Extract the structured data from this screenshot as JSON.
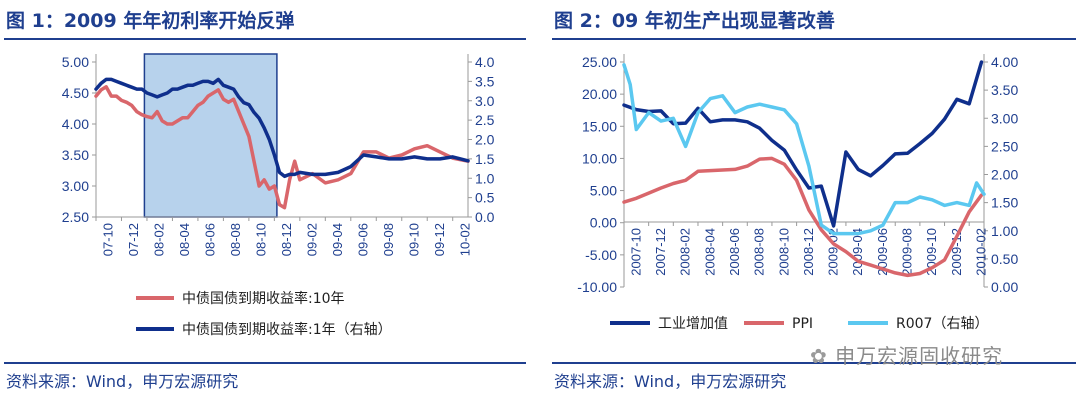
{
  "watermark": "申万宏源固收研究",
  "chart_data": [
    {
      "type": "line",
      "title": "图 1：2009 年年初利率开始反弹",
      "source": "资料来源：Wind，申万宏源研究",
      "ylim": [
        2.5,
        5.0
      ],
      "y_ticks": [
        "5.00",
        "4.50",
        "4.00",
        "3.50",
        "3.00",
        "2.50"
      ],
      "y2lim": [
        0.0,
        4.0
      ],
      "y2_ticks": [
        "4.0",
        "3.5",
        "3.0",
        "2.5",
        "2.0",
        "1.5",
        "1.0",
        "0.5",
        "0.0"
      ],
      "categories": [
        "07-10",
        "07-12",
        "08-02",
        "08-04",
        "08-06",
        "08-08",
        "08-10",
        "08-12",
        "09-02",
        "09-04",
        "09-06",
        "09-08",
        "09-10",
        "09-12",
        "10-02"
      ],
      "x_range": [
        0,
        14.6
      ],
      "highlight_region": [
        1.9,
        7.1
      ],
      "grid": false,
      "legend_position": "bottom",
      "colors": {
        "ten_year": "#d9666b",
        "one_year": "#0f2f8c",
        "highlight": "#9fc3e6",
        "highlight_border": "#1f3f8f"
      },
      "series": [
        {
          "name": "中债国债到期收益率:10年",
          "axis": "left",
          "x": [
            0,
            0.2,
            0.4,
            0.6,
            0.8,
            1.0,
            1.2,
            1.4,
            1.6,
            1.8,
            2.0,
            2.2,
            2.4,
            2.6,
            2.8,
            3.0,
            3.2,
            3.4,
            3.6,
            3.8,
            4.0,
            4.2,
            4.4,
            4.6,
            4.8,
            5.0,
            5.2,
            5.4,
            5.6,
            5.8,
            6.0,
            6.2,
            6.4,
            6.6,
            6.8,
            7.0,
            7.2,
            7.4,
            7.6,
            7.8,
            8.0,
            8.5,
            9.0,
            9.5,
            10.0,
            10.5,
            11.0,
            11.5,
            12.0,
            12.5,
            13.0,
            13.5,
            14.0,
            14.6
          ],
          "values": [
            4.45,
            4.55,
            4.6,
            4.45,
            4.45,
            4.38,
            4.35,
            4.3,
            4.2,
            4.15,
            4.12,
            4.1,
            4.2,
            4.05,
            4.0,
            4.0,
            4.05,
            4.1,
            4.1,
            4.2,
            4.3,
            4.35,
            4.45,
            4.5,
            4.55,
            4.4,
            4.35,
            4.4,
            4.2,
            4.0,
            3.8,
            3.4,
            3.0,
            3.1,
            2.95,
            3.0,
            2.7,
            2.65,
            3.1,
            3.4,
            3.1,
            3.2,
            3.05,
            3.1,
            3.2,
            3.55,
            3.55,
            3.45,
            3.5,
            3.6,
            3.65,
            3.55,
            3.45,
            3.4
          ]
        },
        {
          "name": "中债国债到期收益率:1年（右轴）",
          "axis": "right",
          "x": [
            0,
            0.2,
            0.4,
            0.6,
            0.8,
            1.0,
            1.2,
            1.4,
            1.6,
            1.8,
            2.0,
            2.2,
            2.4,
            2.6,
            2.8,
            3.0,
            3.2,
            3.4,
            3.6,
            3.8,
            4.0,
            4.2,
            4.4,
            4.6,
            4.8,
            5.0,
            5.2,
            5.4,
            5.6,
            5.8,
            6.0,
            6.2,
            6.4,
            6.6,
            6.8,
            7.0,
            7.2,
            7.4,
            7.6,
            7.8,
            8.0,
            8.5,
            9.0,
            9.5,
            10.0,
            10.5,
            11.0,
            11.5,
            12.0,
            12.5,
            13.0,
            13.5,
            14.0,
            14.6
          ],
          "values": [
            3.3,
            3.45,
            3.55,
            3.55,
            3.5,
            3.45,
            3.4,
            3.35,
            3.3,
            3.3,
            3.2,
            3.15,
            3.1,
            3.15,
            3.2,
            3.3,
            3.3,
            3.35,
            3.4,
            3.4,
            3.45,
            3.5,
            3.5,
            3.45,
            3.55,
            3.4,
            3.35,
            3.3,
            3.1,
            2.95,
            2.9,
            2.7,
            2.55,
            2.3,
            2.0,
            1.6,
            1.15,
            1.05,
            1.1,
            1.1,
            1.15,
            1.1,
            1.1,
            1.15,
            1.3,
            1.6,
            1.55,
            1.5,
            1.5,
            1.55,
            1.5,
            1.5,
            1.55,
            1.45
          ]
        }
      ]
    },
    {
      "type": "line",
      "title": "图 2：09 年初生产出现显著改善",
      "source": "资料来源：Wind，申万宏源研究",
      "ylim": [
        -10,
        25
      ],
      "y_ticks": [
        "25.00",
        "20.00",
        "15.00",
        "10.00",
        "5.00",
        "0.00",
        "-5.00",
        "-10.00"
      ],
      "y2lim": [
        0,
        4
      ],
      "y2_ticks": [
        "4.00",
        "3.50",
        "3.00",
        "2.50",
        "2.00",
        "1.50",
        "1.00",
        "0.50",
        "0.00"
      ],
      "categories": [
        "2007-10",
        "2007-12",
        "2008-02",
        "2008-04",
        "2008-06",
        "2008-08",
        "2008-10",
        "2008-12",
        "2009-02",
        "2009-04",
        "2009-06",
        "2009-08",
        "2009-10",
        "2009-12",
        "2010-02"
      ],
      "x_range": [
        0,
        14.6
      ],
      "grid": false,
      "legend_position": "bottom",
      "colors": {
        "industrial": "#0f2f8c",
        "ppi": "#d9666b",
        "r007": "#5bc8f0"
      },
      "series": [
        {
          "name": "工业增加值",
          "axis": "left",
          "x": [
            0,
            0.5,
            1,
            1.5,
            2,
            2.5,
            3,
            3.5,
            4,
            4.5,
            5,
            5.5,
            6,
            6.5,
            7,
            7.5,
            8,
            8.5,
            9,
            9.5,
            10,
            10.5,
            11,
            11.5,
            12,
            12.5,
            13,
            13.5,
            14,
            14.5
          ],
          "values": [
            18.3,
            17.6,
            17.3,
            17.4,
            15.4,
            15.5,
            17.8,
            15.7,
            16.0,
            16.0,
            15.7,
            14.7,
            12.8,
            11.3,
            8.2,
            5.4,
            5.7,
            -0.5,
            11.0,
            8.3,
            7.3,
            8.9,
            10.7,
            10.8,
            12.3,
            13.9,
            16.1,
            19.2,
            18.5,
            25.0
          ]
        },
        {
          "name": "PPI",
          "axis": "left",
          "x": [
            0,
            0.5,
            1,
            1.5,
            2,
            2.5,
            3,
            3.5,
            4,
            4.5,
            5,
            5.5,
            6,
            6.5,
            7,
            7.5,
            8,
            8.5,
            9,
            9.5,
            10,
            10.5,
            11,
            11.5,
            12,
            12.5,
            13,
            13.5,
            14,
            14.5
          ],
          "values": [
            3.2,
            3.8,
            4.6,
            5.4,
            6.1,
            6.6,
            8.0,
            8.1,
            8.2,
            8.3,
            8.8,
            9.9,
            10.0,
            9.1,
            6.6,
            2.0,
            -1.1,
            -3.3,
            -4.5,
            -6.0,
            -6.6,
            -7.2,
            -7.8,
            -8.2,
            -7.9,
            -7.0,
            -5.8,
            -2.1,
            1.7,
            4.3
          ]
        },
        {
          "name": "R007（右轴）",
          "axis": "right",
          "x": [
            0,
            0.25,
            0.5,
            1,
            1.5,
            2,
            2.5,
            3,
            3.5,
            4,
            4.5,
            5,
            5.5,
            6,
            6.5,
            7,
            7.5,
            8,
            8.5,
            9,
            9.5,
            10,
            10.5,
            11,
            11.5,
            12,
            12.5,
            13,
            13.5,
            14,
            14.3,
            14.6
          ],
          "values": [
            3.95,
            3.6,
            2.8,
            3.1,
            2.95,
            3.0,
            2.5,
            3.1,
            3.35,
            3.4,
            3.1,
            3.2,
            3.25,
            3.2,
            3.15,
            2.9,
            2.15,
            1.1,
            0.95,
            0.95,
            0.95,
            1.0,
            1.1,
            1.5,
            1.5,
            1.6,
            1.55,
            1.45,
            1.5,
            1.45,
            1.85,
            1.65
          ]
        }
      ]
    }
  ]
}
